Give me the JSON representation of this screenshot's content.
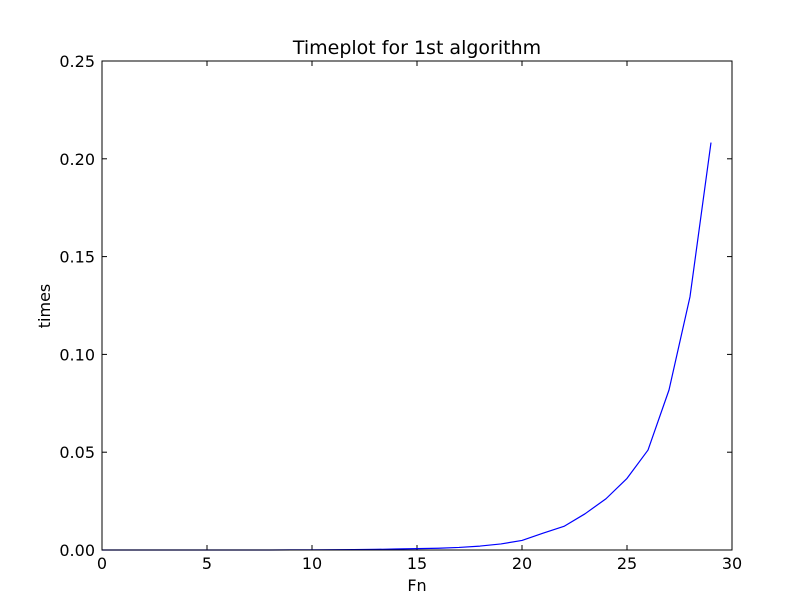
{
  "chart_data": {
    "type": "line",
    "title": "Timeplot for 1st algorithm",
    "xlabel": "Fn",
    "ylabel": "times",
    "xlim": [
      0,
      30
    ],
    "ylim": [
      0,
      0.25
    ],
    "x_ticks": [
      "0",
      "5",
      "10",
      "15",
      "20",
      "25",
      "30"
    ],
    "y_ticks": [
      "0.00",
      "0.05",
      "0.10",
      "0.15",
      "0.20",
      "0.25"
    ],
    "grid": false,
    "legend": "none",
    "series": [
      {
        "color": "#0000ff",
        "x": [
          0,
          1,
          2,
          3,
          4,
          5,
          6,
          7,
          8,
          9,
          10,
          11,
          12,
          13,
          14,
          15,
          16,
          17,
          18,
          19,
          20,
          21,
          22,
          23,
          24,
          25,
          26,
          27,
          28,
          29
        ],
        "y": [
          0.0,
          0.0,
          0.0,
          0.0,
          0.0,
          0.0,
          0.0,
          0.0,
          0.0,
          5e-05,
          8e-05,
          0.00012,
          0.0002,
          0.0003,
          0.0005,
          0.0007,
          0.0009,
          0.0013,
          0.002,
          0.0031,
          0.0049,
          0.0086,
          0.0121,
          0.0185,
          0.0262,
          0.0366,
          0.0511,
          0.0818,
          0.1295,
          0.2083
        ]
      }
    ]
  }
}
